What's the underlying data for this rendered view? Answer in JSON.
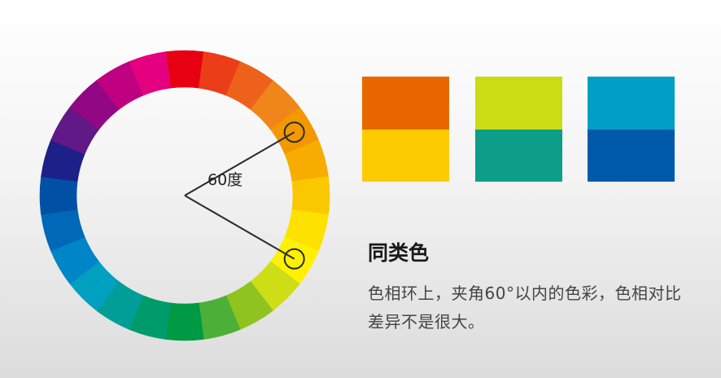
{
  "wheel": {
    "segment_count": 24,
    "start_angle_deg": -90,
    "segment_colors": [
      "#e60012",
      "#eb3d17",
      "#ee611b",
      "#f08519",
      "#f39800",
      "#f7ad00",
      "#fac800",
      "#fde100",
      "#fff100",
      "#cfdd17",
      "#8fc31f",
      "#4cb038",
      "#009944",
      "#009b6b",
      "#009e96",
      "#00a0c1",
      "#0086c6",
      "#0068b7",
      "#0050a6",
      "#1d2088",
      "#601986",
      "#920783",
      "#be0081",
      "#e4007f"
    ],
    "angle_label": "60度",
    "marker_angles_deg": [
      -30,
      30
    ],
    "line_color": "#2b2b2b"
  },
  "swatches": [
    {
      "top": "#ea6700",
      "bottom": "#fccc00"
    },
    {
      "top": "#cadc14",
      "bottom": "#0c9e89"
    },
    {
      "top": "#009fc6",
      "bottom": "#005aab"
    }
  ],
  "text": {
    "title": "同类色",
    "description": "色相环上，夹角60°以内的色彩，色相对比差异不是很大。"
  }
}
